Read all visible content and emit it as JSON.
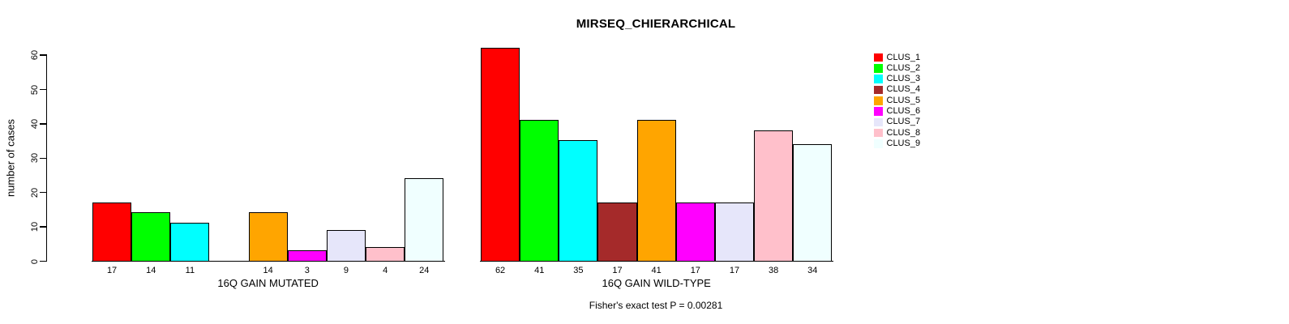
{
  "chart_data": {
    "type": "bar",
    "title": "MIRSEQ_CHIERARCHICAL",
    "ylabel": "number of cases",
    "ylim": [
      0,
      60
    ],
    "yticks": [
      0,
      10,
      20,
      30,
      40,
      50,
      60
    ],
    "grid": false,
    "legend_position": "right",
    "series": [
      {
        "name": "CLUS_1",
        "color": "#FF0000"
      },
      {
        "name": "CLUS_2",
        "color": "#00FF00"
      },
      {
        "name": "CLUS_3",
        "color": "#00FFFF"
      },
      {
        "name": "CLUS_4",
        "color": "#A52A2A"
      },
      {
        "name": "CLUS_5",
        "color": "#FFA500"
      },
      {
        "name": "CLUS_6",
        "color": "#FF00FF"
      },
      {
        "name": "CLUS_7",
        "color": "#E6E6FA"
      },
      {
        "name": "CLUS_8",
        "color": "#FFC0CB"
      },
      {
        "name": "CLUS_9",
        "color": "#F0FFFF"
      }
    ],
    "groups": [
      {
        "xlabel": "16Q GAIN MUTATED",
        "values": [
          17,
          14,
          11,
          0,
          14,
          3,
          9,
          4,
          24
        ],
        "bar_labels": [
          "17",
          "14",
          "11",
          "",
          "14",
          "3",
          "9",
          "4",
          "24"
        ]
      },
      {
        "xlabel": "16Q GAIN WILD-TYPE",
        "values": [
          62,
          41,
          35,
          17,
          41,
          17,
          17,
          38,
          34
        ],
        "bar_labels": [
          "62",
          "41",
          "35",
          "17",
          "41",
          "17",
          "17",
          "38",
          "34"
        ]
      }
    ],
    "annotation": "Fisher's exact test P = 0.00281"
  }
}
